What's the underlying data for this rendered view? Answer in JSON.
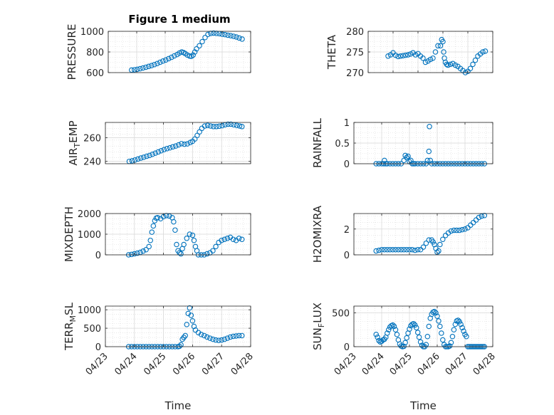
{
  "colors": {
    "marker": "#0072BD",
    "grid": "#d9d9d9",
    "axis": "#262626"
  },
  "chart_data": [
    {
      "id": "pressure",
      "type": "scatter",
      "title": "Figure 1 medium",
      "ylabel": "PRESSURE",
      "xlabel": "",
      "ylim": [
        600,
        1000
      ],
      "yticks": [
        600,
        800,
        1000
      ],
      "ytick_labels": [
        "600",
        "800",
        "1000"
      ],
      "xlim": [
        0,
        5
      ],
      "xticks": [
        0,
        1,
        2,
        3,
        4,
        5
      ],
      "xtick_labels": [
        "04/23",
        "04/24",
        "04/25",
        "04/26",
        "04/27",
        "04/28"
      ],
      "show_xticklabels": false,
      "grid": true,
      "minor_grid": true,
      "x": [
        0.82,
        0.92,
        1.02,
        1.12,
        1.22,
        1.32,
        1.42,
        1.52,
        1.62,
        1.72,
        1.82,
        1.92,
        2.02,
        2.12,
        2.22,
        2.32,
        2.42,
        2.5,
        2.58,
        2.64,
        2.7,
        2.78,
        2.86,
        2.92,
        2.98,
        3.04,
        3.1,
        3.2,
        3.3,
        3.4,
        3.5,
        3.6,
        3.7,
        3.8,
        3.9,
        4.0,
        4.1,
        4.2,
        4.3,
        4.4,
        4.5,
        4.6,
        4.7
      ],
      "y": [
        625,
        628,
        632,
        638,
        645,
        652,
        660,
        668,
        678,
        688,
        700,
        712,
        722,
        735,
        748,
        762,
        775,
        790,
        800,
        795,
        785,
        770,
        760,
        758,
        770,
        800,
        830,
        860,
        900,
        940,
        970,
        980,
        983,
        980,
        978,
        972,
        968,
        962,
        958,
        952,
        945,
        935,
        925
      ]
    },
    {
      "id": "theta",
      "type": "scatter",
      "title": "",
      "ylabel": "THETA",
      "xlabel": "",
      "ylim": [
        270,
        280
      ],
      "yticks": [
        270,
        275,
        280
      ],
      "ytick_labels": [
        "270",
        "275",
        "280"
      ],
      "xlim": [
        0,
        5
      ],
      "xticks": [
        0,
        1,
        2,
        3,
        4,
        5
      ],
      "xtick_labels": [
        "04/23",
        "04/24",
        "04/25",
        "04/26",
        "04/27",
        "04/28"
      ],
      "show_xticklabels": false,
      "grid": true,
      "minor_grid": true,
      "x": [
        0.8,
        0.9,
        1.0,
        1.1,
        1.2,
        1.3,
        1.4,
        1.5,
        1.6,
        1.7,
        1.8,
        1.9,
        2.0,
        2.1,
        2.2,
        2.3,
        2.4,
        2.5,
        2.6,
        2.7,
        2.8,
        2.9,
        2.95,
        3.0,
        3.03,
        3.06,
        3.1,
        3.15,
        3.2,
        3.3,
        3.4,
        3.5,
        3.6,
        3.7,
        3.8,
        3.9,
        4.0,
        4.1,
        4.2,
        4.3,
        4.4,
        4.5,
        4.6,
        4.7
      ],
      "y": [
        274,
        274.3,
        274.8,
        274.2,
        273.9,
        274,
        274.1,
        274.2,
        274.3,
        274.5,
        274.8,
        274.3,
        274.6,
        274,
        273.5,
        272.5,
        272.8,
        273.2,
        273.5,
        275,
        276.5,
        276.5,
        278,
        277.5,
        275,
        273.5,
        272.5,
        272,
        271.8,
        272,
        272.2,
        271.8,
        271.5,
        271,
        270.5,
        270,
        270.3,
        271,
        272,
        273,
        274,
        274.5,
        275,
        275.2
      ]
    },
    {
      "id": "air_temp",
      "type": "scatter",
      "title": "",
      "ylabel": "AIR_TEMP",
      "ylabel_main": "AIR",
      "ylabel_sub": "T",
      "ylabel_rest": "EMP",
      "xlabel": "",
      "ylim": [
        238,
        273
      ],
      "yticks": [
        240,
        260
      ],
      "ytick_labels": [
        "240",
        "260"
      ],
      "xlim": [
        0,
        5
      ],
      "xticks": [
        0,
        1,
        2,
        3,
        4,
        5
      ],
      "xtick_labels": [
        "04/23",
        "04/24",
        "04/25",
        "04/26",
        "04/27",
        "04/28"
      ],
      "show_xticklabels": false,
      "grid": true,
      "minor_grid": true,
      "x": [
        0.82,
        0.92,
        1.02,
        1.12,
        1.22,
        1.32,
        1.42,
        1.52,
        1.62,
        1.72,
        1.82,
        1.92,
        2.02,
        2.12,
        2.22,
        2.32,
        2.42,
        2.52,
        2.62,
        2.72,
        2.82,
        2.92,
        3.0,
        3.08,
        3.16,
        3.24,
        3.32,
        3.42,
        3.52,
        3.62,
        3.72,
        3.82,
        3.92,
        4.02,
        4.12,
        4.22,
        4.32,
        4.42,
        4.52,
        4.62,
        4.7
      ],
      "y": [
        240,
        240.5,
        241.2,
        242,
        242.8,
        243.5,
        244.3,
        245,
        246,
        247,
        248,
        249,
        250,
        250.8,
        251.5,
        252.3,
        253,
        254,
        255,
        254.5,
        254.8,
        256,
        257,
        259,
        262,
        265,
        268,
        270,
        270.5,
        270,
        269.5,
        269.5,
        269.8,
        270.3,
        271,
        271.5,
        271.5,
        271,
        270.5,
        270,
        269.5
      ]
    },
    {
      "id": "rainfall",
      "type": "scatter",
      "title": "",
      "ylabel": "RAINFALL",
      "xlabel": "",
      "ylim": [
        0,
        1
      ],
      "yticks": [
        0,
        0.5,
        1
      ],
      "ytick_labels": [
        "0",
        "0.5",
        "1"
      ],
      "xlim": [
        0,
        5
      ],
      "xticks": [
        0,
        1,
        2,
        3,
        4,
        5
      ],
      "xtick_labels": [
        "04/23",
        "04/24",
        "04/25",
        "04/26",
        "04/27",
        "04/28"
      ],
      "show_xticklabels": false,
      "grid": true,
      "minor_grid": true,
      "x": [
        0.8,
        0.9,
        1.0,
        1.08,
        1.1,
        1.15,
        1.2,
        1.3,
        1.4,
        1.5,
        1.6,
        1.7,
        1.8,
        1.85,
        1.9,
        1.95,
        2.0,
        2.05,
        2.1,
        2.15,
        2.2,
        2.3,
        2.4,
        2.5,
        2.6,
        2.65,
        2.7,
        2.72,
        2.75,
        2.8,
        2.9,
        3.0,
        3.1,
        3.2,
        3.3,
        3.4,
        3.5,
        3.6,
        3.7,
        3.8,
        3.9,
        4.0,
        4.1,
        4.2,
        4.3,
        4.4,
        4.5,
        4.6,
        4.7
      ],
      "y": [
        0,
        0,
        0,
        0,
        0.08,
        0,
        0,
        0,
        0,
        0,
        0,
        0,
        0.08,
        0.2,
        0.15,
        0.18,
        0.05,
        0.08,
        0,
        0,
        0,
        0,
        0,
        0,
        0,
        0.08,
        0.3,
        0.9,
        0.08,
        0,
        0,
        0,
        0,
        0,
        0,
        0,
        0,
        0,
        0,
        0,
        0,
        0,
        0,
        0,
        0,
        0,
        0,
        0,
        0
      ]
    },
    {
      "id": "mixdepth",
      "type": "scatter",
      "title": "",
      "ylabel": "MIXDEPTH",
      "xlabel": "",
      "ylim": [
        0,
        2000
      ],
      "yticks": [
        0,
        1000,
        2000
      ],
      "ytick_labels": [
        "0",
        "1000",
        "2000"
      ],
      "xlim": [
        0,
        5
      ],
      "xticks": [
        0,
        1,
        2,
        3,
        4,
        5
      ],
      "xtick_labels": [
        "04/23",
        "04/24",
        "04/25",
        "04/26",
        "04/27",
        "04/28"
      ],
      "show_xticklabels": false,
      "grid": true,
      "minor_grid": true,
      "x": [
        0.8,
        0.9,
        1.0,
        1.1,
        1.2,
        1.3,
        1.4,
        1.5,
        1.55,
        1.6,
        1.65,
        1.7,
        1.75,
        1.8,
        1.9,
        2.0,
        2.1,
        2.2,
        2.3,
        2.35,
        2.4,
        2.45,
        2.5,
        2.55,
        2.6,
        2.65,
        2.7,
        2.8,
        2.9,
        3.0,
        3.05,
        3.1,
        3.15,
        3.2,
        3.3,
        3.4,
        3.5,
        3.6,
        3.7,
        3.8,
        3.9,
        4.0,
        4.1,
        4.2,
        4.3,
        4.4,
        4.5,
        4.6,
        4.7
      ],
      "y": [
        0,
        20,
        50,
        80,
        120,
        180,
        250,
        400,
        700,
        1100,
        1400,
        1650,
        1780,
        1800,
        1750,
        1850,
        1900,
        1880,
        1800,
        1600,
        1200,
        500,
        200,
        100,
        50,
        300,
        500,
        800,
        1000,
        950,
        700,
        400,
        200,
        0,
        0,
        0,
        50,
        100,
        200,
        400,
        600,
        700,
        750,
        800,
        850,
        750,
        700,
        800,
        750
      ]
    },
    {
      "id": "h2omixra",
      "type": "scatter",
      "title": "",
      "ylabel": "H2OMIXRA",
      "xlabel": "",
      "ylim": [
        0,
        3.2
      ],
      "yticks": [
        0,
        2
      ],
      "ytick_labels": [
        "0",
        "2"
      ],
      "xlim": [
        0,
        5
      ],
      "xticks": [
        0,
        1,
        2,
        3,
        4,
        5
      ],
      "xtick_labels": [
        "04/23",
        "04/24",
        "04/25",
        "04/26",
        "04/27",
        "04/28"
      ],
      "show_xticklabels": false,
      "grid": true,
      "minor_grid": true,
      "x": [
        0.8,
        0.9,
        1.0,
        1.1,
        1.2,
        1.3,
        1.4,
        1.5,
        1.6,
        1.7,
        1.8,
        1.9,
        2.0,
        2.1,
        2.2,
        2.3,
        2.4,
        2.5,
        2.6,
        2.7,
        2.8,
        2.85,
        2.9,
        2.95,
        3.0,
        3.05,
        3.1,
        3.2,
        3.3,
        3.4,
        3.5,
        3.6,
        3.7,
        3.8,
        3.9,
        4.0,
        4.1,
        4.2,
        4.3,
        4.4,
        4.5,
        4.6,
        4.7
      ],
      "y": [
        0.3,
        0.35,
        0.4,
        0.4,
        0.4,
        0.4,
        0.4,
        0.4,
        0.4,
        0.4,
        0.4,
        0.4,
        0.4,
        0.4,
        0.35,
        0.4,
        0.4,
        0.6,
        0.9,
        1.15,
        1.15,
        1.0,
        0.8,
        0.5,
        0.2,
        0.3,
        0.8,
        1.2,
        1.5,
        1.7,
        1.85,
        1.9,
        1.9,
        1.9,
        1.95,
        2.0,
        2.1,
        2.3,
        2.5,
        2.7,
        2.9,
        3.0,
        3.05
      ]
    },
    {
      "id": "terr_msl",
      "type": "scatter",
      "title": "",
      "ylabel": "TERR_MSL",
      "ylabel_main": "TERR",
      "ylabel_sub": "M",
      "ylabel_rest": "SL",
      "xlabel": "Time",
      "ylim": [
        0,
        1100
      ],
      "yticks": [
        0,
        500,
        1000
      ],
      "ytick_labels": [
        "0",
        "500",
        "1000"
      ],
      "xlim": [
        0,
        5
      ],
      "xticks": [
        0,
        1,
        2,
        3,
        4,
        5
      ],
      "xtick_labels": [
        "04/23",
        "04/24",
        "04/25",
        "04/26",
        "04/27",
        "04/28"
      ],
      "show_xticklabels": true,
      "grid": true,
      "minor_grid": true,
      "x": [
        0.8,
        0.9,
        1.0,
        1.1,
        1.2,
        1.3,
        1.4,
        1.5,
        1.6,
        1.7,
        1.8,
        1.9,
        2.0,
        2.1,
        2.2,
        2.3,
        2.4,
        2.5,
        2.55,
        2.6,
        2.65,
        2.7,
        2.75,
        2.8,
        2.85,
        2.9,
        2.95,
        3.0,
        3.05,
        3.1,
        3.2,
        3.3,
        3.4,
        3.5,
        3.6,
        3.7,
        3.8,
        3.9,
        4.0,
        4.1,
        4.2,
        4.3,
        4.4,
        4.5,
        4.6,
        4.7
      ],
      "y": [
        0,
        0,
        0,
        0,
        0,
        0,
        0,
        0,
        0,
        0,
        0,
        0,
        0,
        0,
        0,
        0,
        0,
        0,
        10,
        50,
        200,
        250,
        300,
        600,
        900,
        1050,
        850,
        700,
        550,
        450,
        380,
        330,
        300,
        260,
        230,
        200,
        180,
        170,
        180,
        200,
        230,
        260,
        280,
        290,
        300,
        300
      ]
    },
    {
      "id": "sun_flux",
      "type": "scatter",
      "title": "",
      "ylabel": "SUN_FLUX",
      "ylabel_main": "SUN",
      "ylabel_sub": "F",
      "ylabel_rest": "LUX",
      "xlabel": "Time",
      "ylim": [
        0,
        600
      ],
      "yticks": [
        0,
        500
      ],
      "ytick_labels": [
        "0",
        "500"
      ],
      "xlim": [
        0,
        5
      ],
      "xticks": [
        0,
        1,
        2,
        3,
        4,
        5
      ],
      "xtick_labels": [
        "04/23",
        "04/24",
        "04/25",
        "04/26",
        "04/27",
        "04/28"
      ],
      "show_xticklabels": true,
      "grid": true,
      "minor_grid": true,
      "x": [
        0.8,
        0.85,
        0.9,
        0.95,
        1.0,
        1.05,
        1.1,
        1.15,
        1.2,
        1.25,
        1.3,
        1.35,
        1.4,
        1.45,
        1.5,
        1.55,
        1.6,
        1.65,
        1.7,
        1.75,
        1.8,
        1.85,
        1.9,
        1.95,
        2.0,
        2.05,
        2.1,
        2.15,
        2.2,
        2.25,
        2.3,
        2.35,
        2.4,
        2.45,
        2.5,
        2.55,
        2.6,
        2.65,
        2.7,
        2.75,
        2.8,
        2.85,
        2.9,
        2.95,
        3.0,
        3.05,
        3.1,
        3.15,
        3.2,
        3.25,
        3.3,
        3.35,
        3.4,
        3.45,
        3.5,
        3.55,
        3.6,
        3.65,
        3.7,
        3.75,
        3.8,
        3.85,
        3.9,
        3.95,
        4.0,
        4.05,
        4.1,
        4.15,
        4.2,
        4.25,
        4.3,
        4.35,
        4.4,
        4.45,
        4.5,
        4.55,
        4.6,
        4.65,
        4.7
      ],
      "y": [
        180,
        140,
        90,
        70,
        80,
        100,
        110,
        140,
        200,
        250,
        290,
        310,
        320,
        300,
        250,
        180,
        100,
        40,
        10,
        0,
        5,
        60,
        130,
        200,
        260,
        310,
        330,
        340,
        320,
        280,
        210,
        140,
        70,
        20,
        0,
        0,
        30,
        150,
        300,
        420,
        480,
        510,
        520,
        500,
        450,
        380,
        300,
        200,
        100,
        30,
        0,
        0,
        0,
        10,
        60,
        150,
        250,
        330,
        380,
        390,
        370,
        330,
        280,
        230,
        180,
        150,
        0,
        0,
        0,
        0,
        0,
        0,
        0,
        0,
        0,
        0,
        0,
        0,
        0
      ]
    }
  ]
}
